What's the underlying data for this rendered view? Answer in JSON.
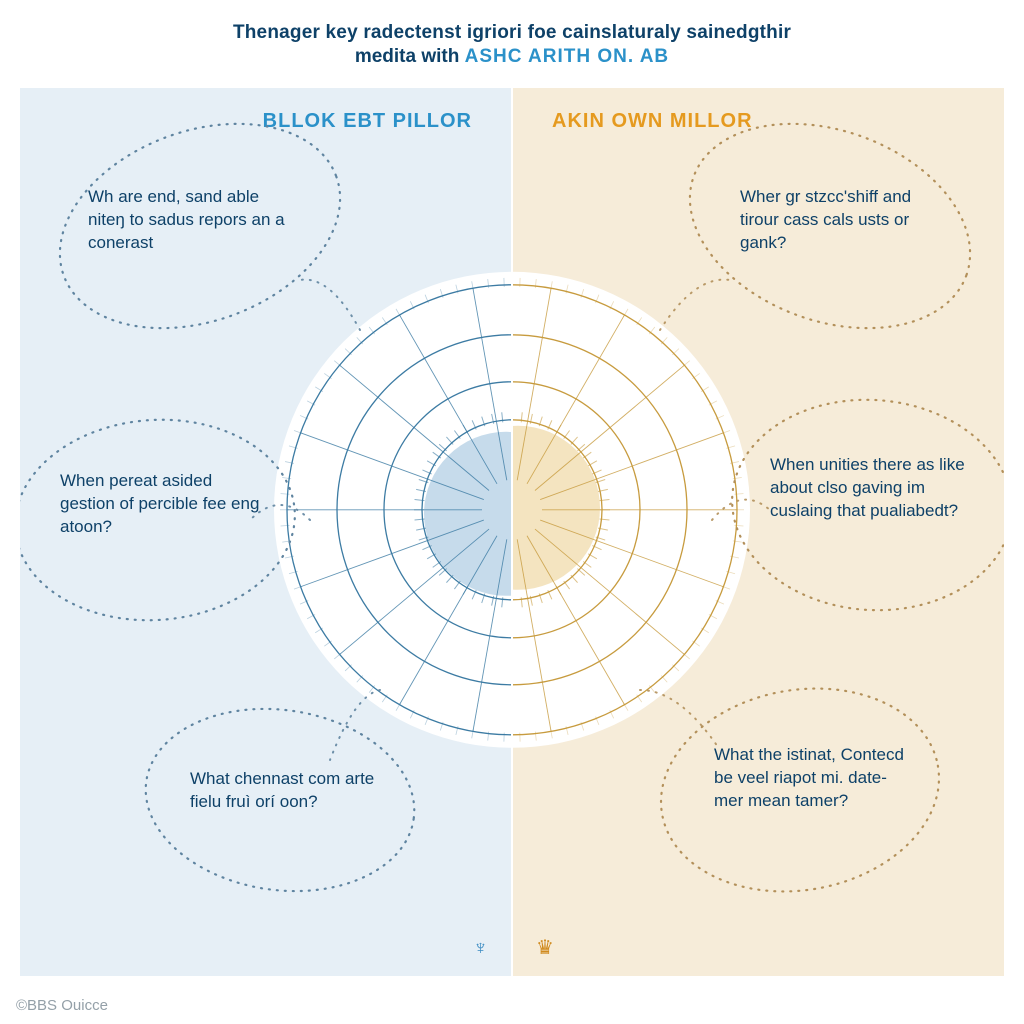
{
  "header": {
    "line1": "Thenager key radectenst igriori foe cainslaturaly sainedgthir",
    "line2_plain": "medita with ",
    "line2_accent": "ASHC ARITH ON. AB"
  },
  "columns": {
    "left": {
      "heading": "BLLOK EBT PILLOR",
      "heading_color": "#2b91c9",
      "bg": "#e6eff6"
    },
    "right": {
      "heading": "AKIN OWN MILLOR",
      "heading_color": "#e59a1f",
      "bg": "#f6ecd9"
    }
  },
  "callouts": {
    "left": [
      {
        "text": "Wh are end, sand able niteŋ to sadus repors an a conerast"
      },
      {
        "text": "When pereat asided gestion of percible fee eng atoon?"
      },
      {
        "text": "What chennast com arte fielu fruì orí oon?"
      }
    ],
    "right": [
      {
        "text": "Wher gr stzcc'shiff and tirour cass cals usts or gank?"
      },
      {
        "text": "When unities there as like about clso gaving im cuslaing that pualiabedt?"
      },
      {
        "text": "What the istinat, Contecd be veel riapot mi. date-mer mean tamer?"
      }
    ]
  },
  "radar": {
    "outer_radius": 225,
    "ring_radii": [
      225,
      175,
      128,
      90
    ],
    "inner_blob_r": 82,
    "left_line_color": "#3c7ba3",
    "right_line_color": "#c79b3e",
    "left_fill": "#bcd5e8",
    "right_fill": "#f2dfb5",
    "bg_white_r": 238
  },
  "petal_style": {
    "dot_color": "#5f84a0",
    "dot_color_right": "#b3905a"
  },
  "icons": {
    "left": "♆",
    "right": "♛"
  },
  "footer": "©BBS Ouicce",
  "text_color": "#0e4168"
}
